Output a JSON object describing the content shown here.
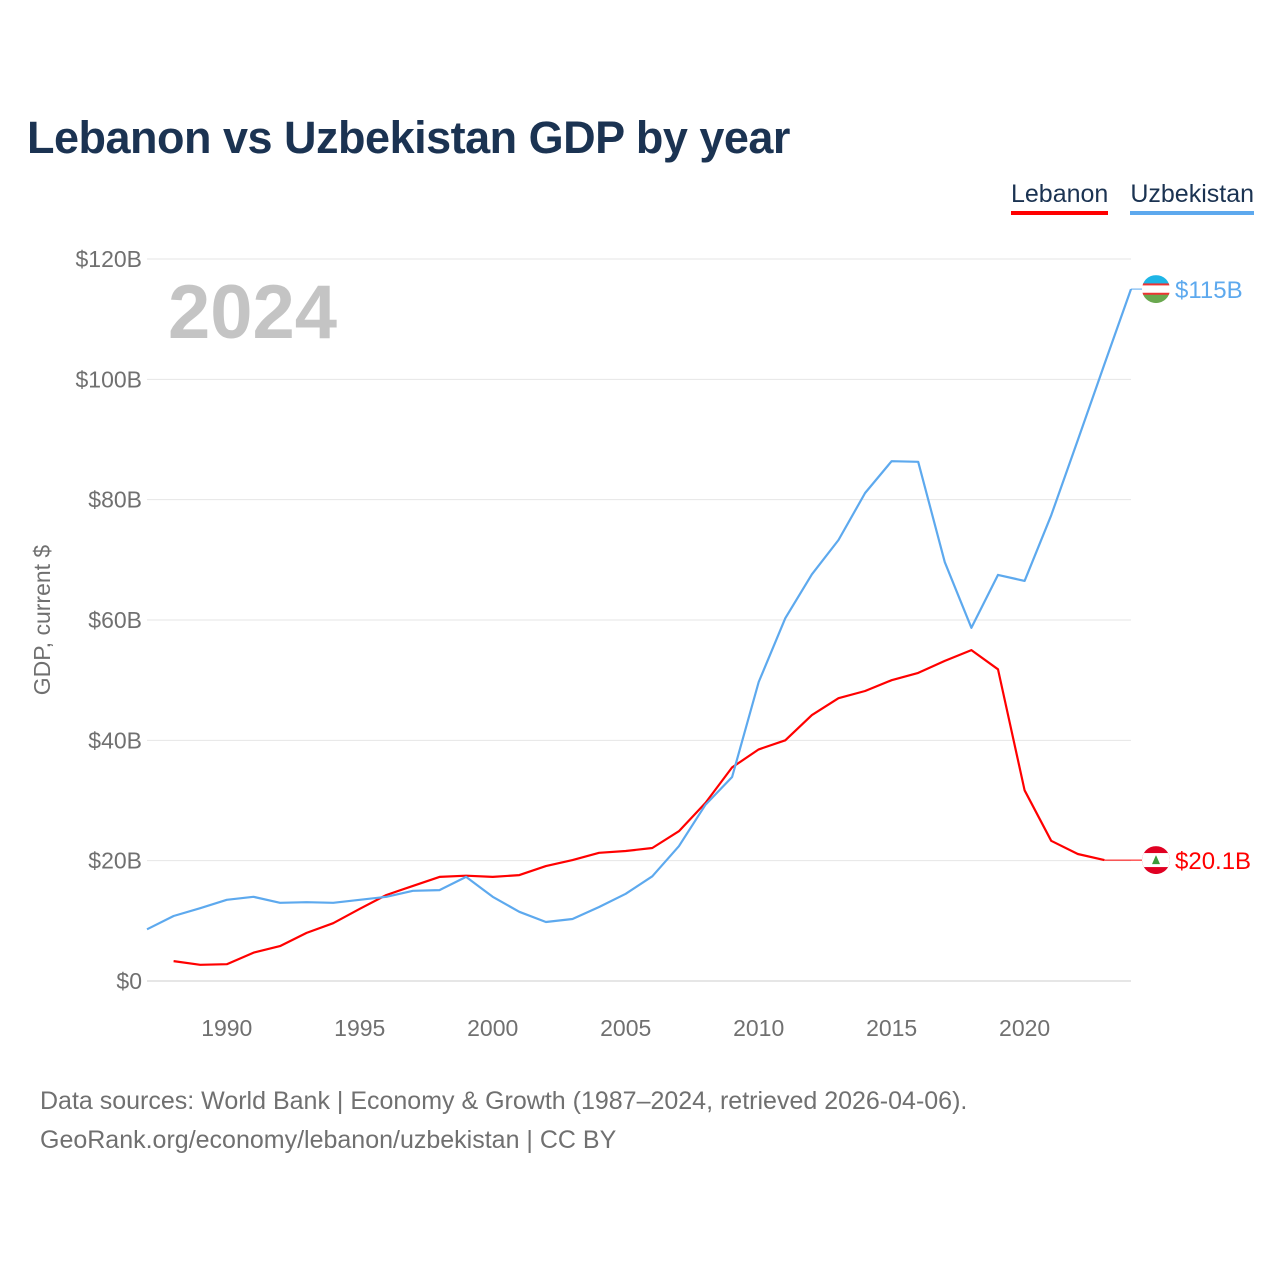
{
  "chart_data": {
    "type": "line",
    "title": "Lebanon vs Uzbekistan GDP by year",
    "ylabel": "GDP, current $",
    "xlabel": "",
    "year_label": "2024",
    "xlim": [
      1987,
      2024
    ],
    "ylim": [
      0,
      120
    ],
    "x_ticks": [
      1990,
      1995,
      2000,
      2005,
      2010,
      2015,
      2020
    ],
    "y_ticks": [
      0,
      20,
      40,
      60,
      80,
      100,
      120
    ],
    "y_tick_labels": [
      "$0",
      "$20B",
      "$40B",
      "$60B",
      "$80B",
      "$100B",
      "$120B"
    ],
    "grid": true,
    "legend_placement": "top-right",
    "series": [
      {
        "name": "Lebanon",
        "color": "#ff0000",
        "end_label": "$20.1B",
        "x": [
          1988,
          1989,
          1990,
          1991,
          1992,
          1993,
          1994,
          1995,
          1996,
          1997,
          1998,
          1999,
          2000,
          2001,
          2002,
          2003,
          2004,
          2005,
          2006,
          2007,
          2008,
          2009,
          2010,
          2011,
          2012,
          2013,
          2014,
          2015,
          2016,
          2017,
          2018,
          2019,
          2020,
          2021,
          2022,
          2023
        ],
        "values": [
          3.3,
          2.7,
          2.8,
          4.7,
          5.8,
          8.0,
          9.6,
          12.0,
          14.3,
          15.8,
          17.3,
          17.5,
          17.3,
          17.6,
          19.1,
          20.1,
          21.3,
          21.6,
          22.1,
          24.9,
          29.6,
          35.5,
          38.5,
          40.0,
          44.2,
          47.0,
          48.2,
          50.0,
          51.2,
          53.2,
          55.0,
          51.8,
          31.7,
          23.3,
          21.1,
          20.1
        ]
      },
      {
        "name": "Uzbekistan",
        "color": "#5da9ee",
        "end_label": "$115B",
        "x": [
          1987,
          1988,
          1989,
          1990,
          1991,
          1992,
          1993,
          1994,
          1995,
          1996,
          1997,
          1998,
          1999,
          2000,
          2001,
          2002,
          2003,
          2004,
          2005,
          2006,
          2007,
          2008,
          2009,
          2010,
          2011,
          2012,
          2013,
          2014,
          2015,
          2016,
          2017,
          2018,
          2019,
          2020,
          2021,
          2022,
          2023,
          2024
        ],
        "values": [
          8.6,
          10.8,
          12.1,
          13.5,
          14.0,
          13.0,
          13.1,
          13.0,
          13.5,
          14.0,
          15.0,
          15.1,
          17.3,
          14.0,
          11.5,
          9.8,
          10.3,
          12.3,
          14.5,
          17.4,
          22.4,
          29.3,
          33.9,
          49.7,
          60.3,
          67.6,
          73.3,
          81.1,
          86.4,
          86.3,
          69.6,
          58.7,
          67.5,
          66.5,
          77.4,
          89.9,
          102.5,
          115
        ]
      }
    ]
  },
  "footer": {
    "line1": "Data sources: World Bank | Economy & Growth (1987–2024, retrieved 2026-04-06).",
    "line2": "GeoRank.org/economy/lebanon/uzbekistan | CC BY"
  }
}
